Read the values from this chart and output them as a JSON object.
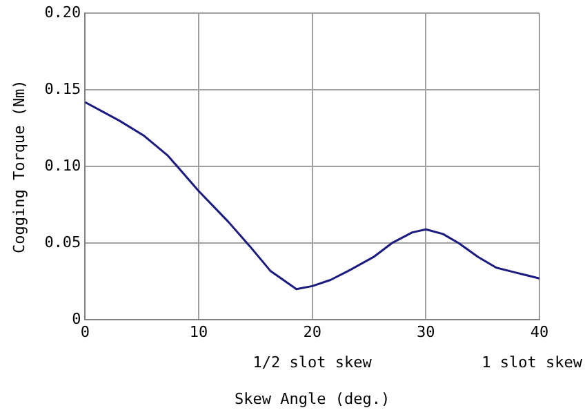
{
  "chart_data": {
    "type": "line",
    "xlabel": "Skew Angle (deg.)",
    "ylabel": "Cogging Torque (Nm)",
    "x": [
      0,
      3,
      5.2,
      7.3,
      10,
      12.6,
      14.5,
      16.3,
      18.6,
      20,
      21.6,
      23.2,
      25.4,
      27,
      28.8,
      30,
      31.5,
      32.9,
      34.6,
      36.2,
      37.8,
      40
    ],
    "series": [
      {
        "color": "#1a1a80",
        "values": [
          0.142,
          0.13,
          0.12,
          0.107,
          0.084,
          0.064,
          0.048,
          0.032,
          0.02,
          0.022,
          0.026,
          0.032,
          0.041,
          0.05,
          0.057,
          0.059,
          0.056,
          0.05,
          0.041,
          0.034,
          0.031,
          0.027
        ]
      }
    ],
    "xlim": [
      0,
      40
    ],
    "xticks": [
      0,
      10,
      20,
      30,
      40
    ],
    "ylim": [
      0,
      0.2
    ],
    "yticks": [
      0,
      0.05,
      {
        "value": 0.1,
        "label": "0.10"
      },
      0.15,
      {
        "value": 0.2,
        "label": "0.20"
      }
    ],
    "annotations": [
      "1/2 slot skew",
      "1 slot skew"
    ],
    "grid": true,
    "legend": false,
    "marker": "none",
    "line_style": "solid"
  }
}
